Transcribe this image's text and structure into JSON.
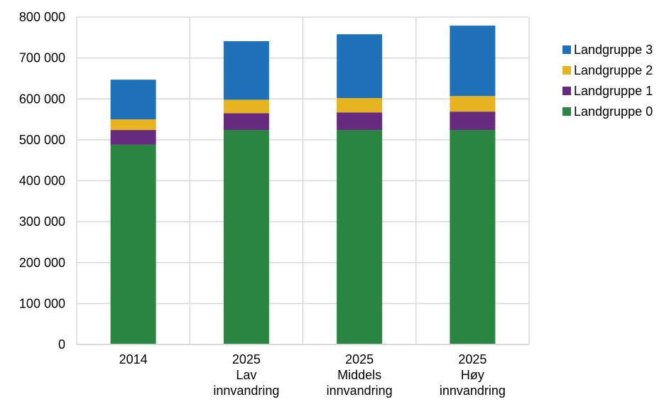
{
  "chart_data": {
    "type": "bar",
    "stacked": true,
    "categories": [
      [
        "2014"
      ],
      [
        "2025",
        "Lav",
        "innvandring"
      ],
      [
        "2025",
        "Middels",
        "innvandring"
      ],
      [
        "2025",
        "Høy",
        "innvandring"
      ]
    ],
    "series": [
      {
        "name": "Landgruppe 0",
        "color": "#2a8442",
        "values": [
          488000,
          524000,
          524000,
          524000
        ]
      },
      {
        "name": "Landgruppe 1",
        "color": "#662a7e",
        "values": [
          36000,
          41000,
          43000,
          45000
        ]
      },
      {
        "name": "Landgruppe 2",
        "color": "#e8b321",
        "values": [
          26000,
          33000,
          35000,
          38000
        ]
      },
      {
        "name": "Landgruppe 3",
        "color": "#1f72b9",
        "values": [
          97000,
          143000,
          156000,
          172000
        ]
      }
    ],
    "ylim": [
      0,
      800000
    ],
    "yticks": [
      0,
      100000,
      200000,
      300000,
      400000,
      500000,
      600000,
      700000,
      800000
    ],
    "ytick_labels": [
      "0",
      "100 000",
      "200 000",
      "300 000",
      "400 000",
      "500 000",
      "600 000",
      "700 000",
      "800 000"
    ],
    "legend_order": [
      "Landgruppe 3",
      "Landgruppe 2",
      "Landgruppe 1",
      "Landgruppe 0"
    ],
    "legend_position": "right",
    "grid": true,
    "gridline_color": "#d9d9d9",
    "title": "",
    "xlabel": "",
    "ylabel": ""
  }
}
